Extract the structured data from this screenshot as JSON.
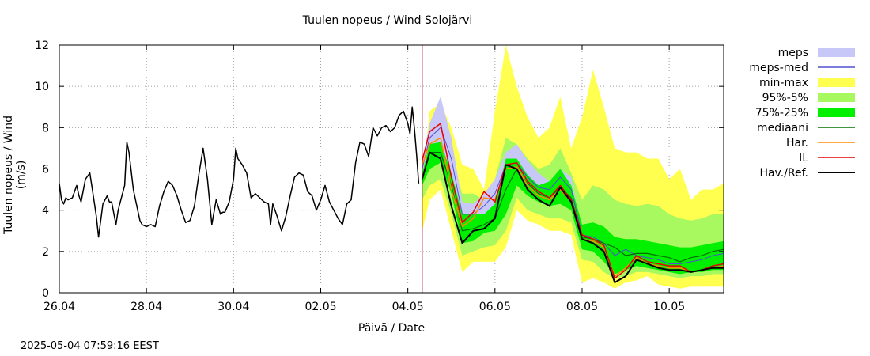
{
  "chart_data": {
    "type": "line",
    "title": "Tuulen nopeus / Wind  Solojärvi",
    "xlabel": "Päivä / Date",
    "ylabel": "Tuulen nopeus / Wind (m/s)",
    "timestamp": "2025-05-04 07:59:16 EEST",
    "xlim": [
      0,
      15.25
    ],
    "ylim": [
      0,
      12
    ],
    "yticks": [
      0,
      2,
      4,
      6,
      8,
      10,
      12
    ],
    "xticks": [
      {
        "x": 0,
        "label": "26.04"
      },
      {
        "x": 2,
        "label": "28.04"
      },
      {
        "x": 4,
        "label": "30.04"
      },
      {
        "x": 6,
        "label": "02.05"
      },
      {
        "x": 8,
        "label": "04.05"
      },
      {
        "x": 10,
        "label": "06.05"
      },
      {
        "x": 12,
        "label": "08.05"
      },
      {
        "x": 14,
        "label": "10.05"
      }
    ],
    "grid": true,
    "forecast_start": 8.33,
    "legend": [
      {
        "key": "meps",
        "label": "meps",
        "color": "#c8c8f8",
        "style": "box"
      },
      {
        "key": "meps_med",
        "label": "meps-med",
        "color": "#5050d0",
        "style": "line"
      },
      {
        "key": "minmax",
        "label": "min-max",
        "color": "#ffff50",
        "style": "box"
      },
      {
        "key": "p95_5",
        "label": "95%-5%",
        "color": "#a8f860",
        "style": "box"
      },
      {
        "key": "p75_25",
        "label": "75%-25%",
        "color": "#00f000",
        "style": "box"
      },
      {
        "key": "mediaani",
        "label": "mediaani",
        "color": "#007000",
        "style": "line"
      },
      {
        "key": "har",
        "label": "Har.",
        "color": "#ff8c00",
        "style": "line"
      },
      {
        "key": "il",
        "label": "IL",
        "color": "#e80000",
        "style": "line"
      },
      {
        "key": "hav",
        "label": "Hav./Ref.",
        "color": "#000000",
        "style": "line"
      }
    ],
    "series": {
      "observed": {
        "name": "Hav./Ref.",
        "x": [
          0,
          0.05,
          0.1,
          0.15,
          0.2,
          0.3,
          0.4,
          0.45,
          0.5,
          0.6,
          0.7,
          0.8,
          0.85,
          0.9,
          1.0,
          1.1,
          1.15,
          1.2,
          1.3,
          1.35,
          1.4,
          1.5,
          1.55,
          1.6,
          1.7,
          1.8,
          1.85,
          1.9,
          2.0,
          2.1,
          2.2,
          2.3,
          2.4,
          2.5,
          2.6,
          2.7,
          2.8,
          2.9,
          3.0,
          3.1,
          3.2,
          3.3,
          3.4,
          3.5,
          3.6,
          3.7,
          3.75,
          3.8,
          3.9,
          4.0,
          4.05,
          4.1,
          4.2,
          4.3,
          4.4,
          4.5,
          4.6,
          4.7,
          4.8,
          4.85,
          4.9,
          5.0,
          5.1,
          5.2,
          5.3,
          5.4,
          5.5,
          5.6,
          5.7,
          5.8,
          5.9,
          6.0,
          6.1,
          6.2,
          6.3,
          6.4,
          6.5,
          6.6,
          6.7,
          6.8,
          6.9,
          7.0,
          7.1,
          7.2,
          7.3,
          7.4,
          7.5,
          7.6,
          7.7,
          7.8,
          7.9,
          8.0,
          8.05,
          8.1,
          8.15,
          8.2,
          8.25
        ],
        "y": [
          5.3,
          4.5,
          4.3,
          4.6,
          4.5,
          4.6,
          5.2,
          4.7,
          4.4,
          5.5,
          5.8,
          4.4,
          3.7,
          2.7,
          4.3,
          4.7,
          4.4,
          4.4,
          3.3,
          4.0,
          4.4,
          5.2,
          7.3,
          6.8,
          5.0,
          4.0,
          3.5,
          3.3,
          3.2,
          3.3,
          3.2,
          4.2,
          4.9,
          5.4,
          5.2,
          4.7,
          4.0,
          3.4,
          3.5,
          4.2,
          5.7,
          7.0,
          5.5,
          3.3,
          4.5,
          3.8,
          3.9,
          3.9,
          4.4,
          5.5,
          7.0,
          6.5,
          6.2,
          5.8,
          4.6,
          4.8,
          4.6,
          4.4,
          4.3,
          3.3,
          4.3,
          3.7,
          3.0,
          3.7,
          4.7,
          5.6,
          5.8,
          5.7,
          4.9,
          4.7,
          4.0,
          4.5,
          5.2,
          4.4,
          4.0,
          3.6,
          3.3,
          4.3,
          4.5,
          6.3,
          7.3,
          7.2,
          6.6,
          8.0,
          7.6,
          8.0,
          8.1,
          7.8,
          8.0,
          8.6,
          8.8,
          8.2,
          7.7,
          9.0,
          8.0,
          6.7,
          5.3
        ]
      },
      "forecast_x": [
        8.33,
        8.5,
        8.75,
        9.0,
        9.25,
        9.5,
        9.75,
        10.0,
        10.25,
        10.5,
        10.75,
        11.0,
        11.25,
        11.5,
        11.75,
        12.0,
        12.25,
        12.5,
        12.75,
        13.0,
        13.25,
        13.5,
        13.75,
        14.0,
        14.25,
        14.5,
        14.75,
        15.0,
        15.25
      ],
      "minmax": {
        "low": [
          3.0,
          4.5,
          5.0,
          3.0,
          1.0,
          1.5,
          1.5,
          1.5,
          2.2,
          4.0,
          3.5,
          3.3,
          3.0,
          3.0,
          2.8,
          0.5,
          0.7,
          0.5,
          0.2,
          0.5,
          0.6,
          0.8,
          0.4,
          0.3,
          0.2,
          0.3,
          0.3,
          0.3,
          0.3
        ],
        "high": [
          5.5,
          8.8,
          9.2,
          8.0,
          6.2,
          6.0,
          5.0,
          8.8,
          12.0,
          10.0,
          8.5,
          7.5,
          8.0,
          9.5,
          7.0,
          8.5,
          10.8,
          9.0,
          7.0,
          6.8,
          6.8,
          6.5,
          6.5,
          5.5,
          6.0,
          4.5,
          5.0,
          5.0,
          5.3
        ]
      },
      "p95_5": {
        "low": [
          4.5,
          5.2,
          5.5,
          3.8,
          1.8,
          2.0,
          2.2,
          2.3,
          3.0,
          4.6,
          4.0,
          3.8,
          3.6,
          3.6,
          3.4,
          1.6,
          1.5,
          1.0,
          0.7,
          0.8,
          1.0,
          1.0,
          0.9,
          0.8,
          0.7,
          0.8,
          0.8,
          0.9,
          0.9
        ],
        "high": [
          5.0,
          7.8,
          8.2,
          6.5,
          4.8,
          4.8,
          4.5,
          5.5,
          7.5,
          7.2,
          6.5,
          6.0,
          6.2,
          7.0,
          5.8,
          4.5,
          5.2,
          5.0,
          4.5,
          4.3,
          4.2,
          4.3,
          4.2,
          3.8,
          3.6,
          3.5,
          3.6,
          3.8,
          3.8
        ]
      },
      "p75_25": {
        "low": [
          5.2,
          6.0,
          6.3,
          4.8,
          2.4,
          2.5,
          2.9,
          3.0,
          3.8,
          5.2,
          4.7,
          4.4,
          4.2,
          4.3,
          4.0,
          2.1,
          2.0,
          1.5,
          0.9,
          1.1,
          1.3,
          1.2,
          1.1,
          1.0,
          0.9,
          1.0,
          1.0,
          1.1,
          1.1
        ],
        "high": [
          5.8,
          7.2,
          7.3,
          5.8,
          3.8,
          3.8,
          3.8,
          4.3,
          6.5,
          6.5,
          5.7,
          5.2,
          5.4,
          6.0,
          5.2,
          3.3,
          3.4,
          3.2,
          2.7,
          2.6,
          2.6,
          2.5,
          2.4,
          2.3,
          2.2,
          2.2,
          2.3,
          2.4,
          2.5
        ]
      },
      "meps": {
        "low": [
          5.8,
          7.0,
          7.2,
          5.2,
          3.2,
          3.3,
          3.4,
          3.8,
          5.4,
          5.6,
          5.0,
          4.7,
          4.6,
          5.0,
          4.6,
          2.5,
          2.4,
          2.1,
          1.6,
          1.8,
          1.6,
          1.5,
          1.4,
          1.2,
          1.2,
          1.3,
          1.4,
          1.6,
          1.7
        ],
        "high": [
          6.4,
          8.2,
          9.5,
          7.5,
          4.4,
          4.3,
          4.8,
          5.5,
          6.8,
          7.2,
          6.4,
          5.8,
          5.4,
          6.0,
          5.6,
          3.0,
          2.9,
          2.7,
          2.1,
          2.3,
          2.0,
          1.9,
          1.8,
          1.6,
          1.6,
          1.7,
          1.8,
          2.0,
          2.1
        ]
      },
      "meps_med": [
        6.0,
        7.5,
        8.0,
        6.5,
        3.8,
        3.8,
        4.2,
        4.8,
        6.2,
        6.3,
        5.6,
        5.1,
        5.0,
        5.6,
        5.0,
        2.8,
        2.7,
        2.4,
        1.8,
        2.1,
        1.8,
        1.7,
        1.6,
        1.4,
        1.4,
        1.5,
        1.6,
        1.8,
        1.9
      ],
      "mediaani": [
        5.5,
        6.8,
        6.8,
        5.2,
        3.0,
        3.1,
        3.3,
        3.6,
        5.0,
        6.0,
        5.3,
        4.8,
        4.6,
        5.1,
        4.6,
        2.7,
        2.6,
        2.4,
        2.2,
        1.8,
        1.9,
        1.9,
        1.8,
        1.7,
        1.5,
        1.7,
        1.8,
        2.0,
        2.1
      ],
      "har": [
        6.2,
        7.2,
        7.5,
        5.0,
        3.2,
        3.6,
        4.6,
        4.5,
        6.0,
        6.1,
        5.2,
        4.7,
        4.5,
        5.0,
        4.4,
        2.6,
        2.5,
        2.2,
        0.8,
        1.2,
        1.7,
        1.4,
        1.3,
        1.2,
        1.2,
        1.0,
        1.1,
        1.2,
        1.3
      ],
      "il": [
        6.4,
        7.8,
        8.2,
        5.6,
        3.4,
        3.9,
        4.9,
        4.4,
        6.2,
        6.3,
        5.4,
        4.9,
        4.6,
        5.2,
        4.5,
        2.8,
        2.6,
        2.3,
        0.7,
        1.1,
        1.8,
        1.5,
        1.4,
        1.3,
        1.3,
        1.0,
        1.1,
        1.3,
        1.4
      ],
      "hav_forecast": [
        5.5,
        6.8,
        6.5,
        4.2,
        2.4,
        3.0,
        3.1,
        3.6,
        6.2,
        6.0,
        5.0,
        4.5,
        4.2,
        5.1,
        4.4,
        2.6,
        2.4,
        2.0,
        0.5,
        0.8,
        1.6,
        1.4,
        1.2,
        1.1,
        1.1,
        1.0,
        1.1,
        1.2,
        1.2
      ]
    }
  }
}
